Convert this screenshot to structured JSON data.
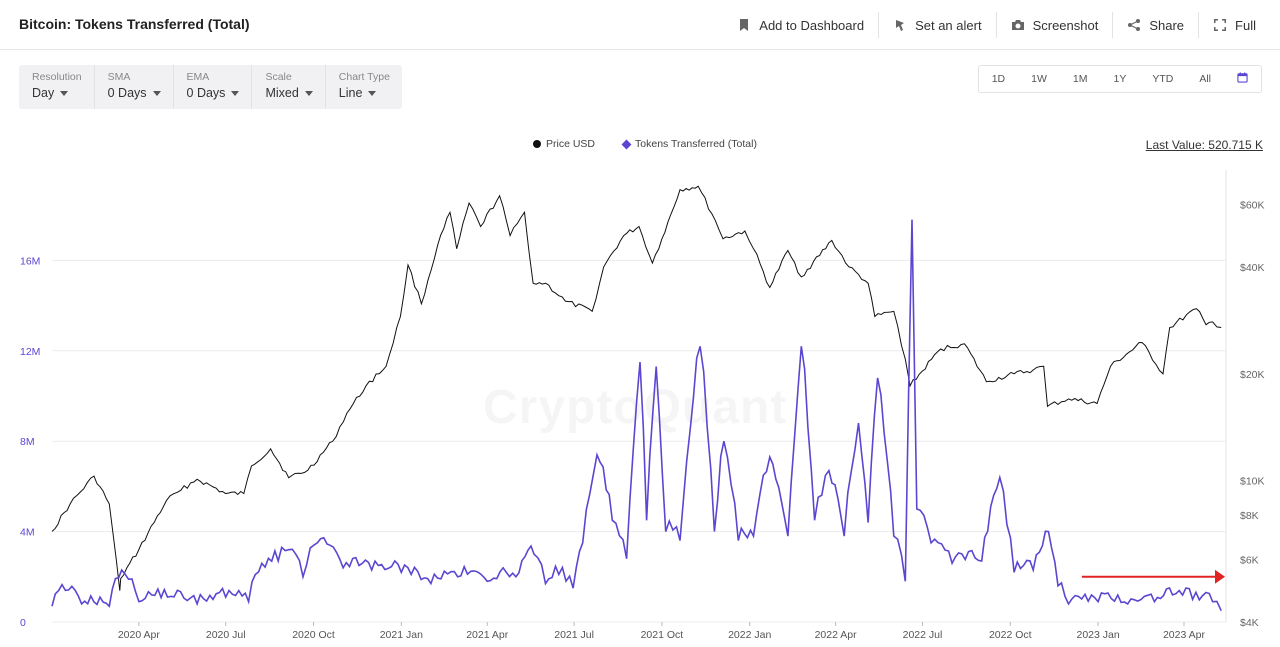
{
  "header": {
    "title": "Bitcoin: Tokens Transferred (Total)",
    "actions": {
      "dashboard": "Add to Dashboard",
      "alert": "Set an alert",
      "screenshot": "Screenshot",
      "share": "Share",
      "full": "Full"
    }
  },
  "controls": {
    "resolution": {
      "label": "Resolution",
      "value": "Day"
    },
    "sma": {
      "label": "SMA",
      "value": "0 Days"
    },
    "ema": {
      "label": "EMA",
      "value": "0 Days"
    },
    "scale": {
      "label": "Scale",
      "value": "Mixed"
    },
    "chart_type": {
      "label": "Chart Type",
      "value": "Line"
    }
  },
  "ranges": [
    "1D",
    "1W",
    "1M",
    "1Y",
    "YTD",
    "All"
  ],
  "last_value": "Last Value: 520.715 K",
  "watermark": "CryptoQuant",
  "colors": {
    "price": "#111111",
    "tokens": "#5a47d1",
    "arrow": "#e02424",
    "left_axis": "#5a47d1"
  },
  "chart_data": {
    "type": "line",
    "legend": [
      "Price USD",
      "Tokens Transferred (Total)"
    ],
    "x_ticks": [
      "2020 Apr",
      "2020 Jul",
      "2020 Oct",
      "2021 Jan",
      "2021 Apr",
      "2021 Jul",
      "2021 Oct",
      "2022 Jan",
      "2022 Apr",
      "2022 Jul",
      "2022 Oct",
      "2023 Jan",
      "2023 Apr"
    ],
    "x_tick_dates": [
      "2020-04-01",
      "2020-07-01",
      "2020-10-01",
      "2021-01-01",
      "2021-04-01",
      "2021-07-01",
      "2021-10-01",
      "2022-01-01",
      "2022-04-01",
      "2022-07-01",
      "2022-10-01",
      "2023-01-01",
      "2023-04-01"
    ],
    "x_range": [
      "2020-01-01",
      "2023-05-15"
    ],
    "y_left": {
      "ticks": [
        "0",
        "4M",
        "8M",
        "12M",
        "16M"
      ],
      "values": [
        0,
        4000000,
        8000000,
        12000000,
        16000000
      ],
      "range": [
        0,
        20000000
      ]
    },
    "y_right": {
      "scale": "log",
      "ticks": [
        "$4K",
        "$6K",
        "$8K",
        "$10K",
        "$20K",
        "$40K",
        "$60K"
      ],
      "values": [
        4000,
        6000,
        8000,
        10000,
        20000,
        40000,
        60000
      ],
      "range": [
        4000,
        75000
      ]
    },
    "grid": true,
    "legend_position": "top-center",
    "series": [
      {
        "name": "Price USD",
        "axis": "right",
        "points": [
          [
            "2020-01-01",
            7200
          ],
          [
            "2020-01-20",
            8600
          ],
          [
            "2020-02-14",
            10300
          ],
          [
            "2020-03-01",
            8600
          ],
          [
            "2020-03-12",
            4900
          ],
          [
            "2020-03-13",
            5300
          ],
          [
            "2020-04-01",
            6400
          ],
          [
            "2020-04-30",
            8800
          ],
          [
            "2020-05-15",
            9400
          ],
          [
            "2020-06-01",
            10100
          ],
          [
            "2020-07-01",
            9200
          ],
          [
            "2020-07-20",
            9200
          ],
          [
            "2020-07-28",
            11000
          ],
          [
            "2020-08-17",
            12300
          ],
          [
            "2020-09-05",
            10200
          ],
          [
            "2020-09-25",
            10700
          ],
          [
            "2020-10-21",
            12900
          ],
          [
            "2020-11-05",
            15500
          ],
          [
            "2020-11-25",
            18500
          ],
          [
            "2020-12-16",
            21000
          ],
          [
            "2020-12-31",
            29000
          ],
          [
            "2021-01-08",
            40500
          ],
          [
            "2021-01-22",
            31500
          ],
          [
            "2021-02-08",
            46000
          ],
          [
            "2021-02-21",
            57000
          ],
          [
            "2021-02-28",
            45000
          ],
          [
            "2021-03-13",
            60500
          ],
          [
            "2021-03-25",
            52000
          ],
          [
            "2021-04-14",
            63500
          ],
          [
            "2021-04-25",
            49000
          ],
          [
            "2021-05-10",
            57000
          ],
          [
            "2021-05-19",
            36000
          ],
          [
            "2021-06-01",
            36000
          ],
          [
            "2021-06-22",
            32000
          ],
          [
            "2021-07-20",
            30000
          ],
          [
            "2021-08-01",
            40000
          ],
          [
            "2021-08-22",
            49000
          ],
          [
            "2021-09-07",
            52000
          ],
          [
            "2021-09-21",
            41000
          ],
          [
            "2021-10-01",
            48000
          ],
          [
            "2021-10-20",
            66000
          ],
          [
            "2021-11-08",
            67500
          ],
          [
            "2021-11-26",
            54000
          ],
          [
            "2021-12-04",
            48000
          ],
          [
            "2021-12-27",
            50500
          ],
          [
            "2022-01-05",
            45000
          ],
          [
            "2022-01-22",
            35000
          ],
          [
            "2022-02-10",
            44500
          ],
          [
            "2022-02-24",
            37500
          ],
          [
            "2022-03-28",
            47500
          ],
          [
            "2022-04-15",
            40000
          ],
          [
            "2022-05-05",
            36000
          ],
          [
            "2022-05-12",
            29000
          ],
          [
            "2022-06-01",
            30000
          ],
          [
            "2022-06-13",
            22000
          ],
          [
            "2022-06-18",
            18500
          ],
          [
            "2022-07-20",
            23500
          ],
          [
            "2022-08-14",
            24300
          ],
          [
            "2022-09-06",
            19000
          ],
          [
            "2022-10-05",
            20000
          ],
          [
            "2022-10-25",
            20500
          ],
          [
            "2022-11-05",
            21000
          ],
          [
            "2022-11-09",
            16200
          ],
          [
            "2022-12-01",
            17000
          ],
          [
            "2022-12-31",
            16500
          ],
          [
            "2023-01-14",
            21000
          ],
          [
            "2023-02-16",
            24500
          ],
          [
            "2023-03-10",
            20000
          ],
          [
            "2023-03-17",
            27000
          ],
          [
            "2023-04-14",
            30500
          ],
          [
            "2023-04-24",
            27500
          ],
          [
            "2023-05-01",
            28000
          ],
          [
            "2023-05-10",
            27000
          ]
        ]
      },
      {
        "name": "Tokens Transferred (Total)",
        "axis": "left",
        "points": [
          [
            "2020-01-01",
            700000
          ],
          [
            "2020-01-15",
            1400000
          ],
          [
            "2020-02-01",
            800000
          ],
          [
            "2020-03-01",
            700000
          ],
          [
            "2020-03-14",
            2300000
          ],
          [
            "2020-04-01",
            900000
          ],
          [
            "2020-05-01",
            1100000
          ],
          [
            "2020-06-01",
            800000
          ],
          [
            "2020-07-01",
            1100000
          ],
          [
            "2020-07-25",
            900000
          ],
          [
            "2020-08-01",
            2100000
          ],
          [
            "2020-08-25",
            2700000
          ],
          [
            "2020-09-05",
            3200000
          ],
          [
            "2020-09-20",
            2000000
          ],
          [
            "2020-10-05",
            3500000
          ],
          [
            "2020-11-01",
            2400000
          ],
          [
            "2020-12-01",
            2300000
          ],
          [
            "2021-01-01",
            2200000
          ],
          [
            "2021-02-01",
            1700000
          ],
          [
            "2021-03-01",
            2000000
          ],
          [
            "2021-04-01",
            1800000
          ],
          [
            "2021-05-01",
            2000000
          ],
          [
            "2021-05-20",
            3000000
          ],
          [
            "2021-06-01",
            1700000
          ],
          [
            "2021-06-15",
            2100000
          ],
          [
            "2021-06-30",
            1500000
          ],
          [
            "2021-07-10",
            3500000
          ],
          [
            "2021-07-25",
            7400000
          ],
          [
            "2021-08-10",
            4500000
          ],
          [
            "2021-08-25",
            2800000
          ],
          [
            "2021-09-08",
            11500000
          ],
          [
            "2021-09-15",
            4500000
          ],
          [
            "2021-09-25",
            11300000
          ],
          [
            "2021-10-05",
            4000000
          ],
          [
            "2021-10-20",
            3600000
          ],
          [
            "2021-11-10",
            12200000
          ],
          [
            "2021-11-25",
            4000000
          ],
          [
            "2021-12-05",
            8000000
          ],
          [
            "2021-12-20",
            3600000
          ],
          [
            "2022-01-05",
            3800000
          ],
          [
            "2022-01-22",
            7300000
          ],
          [
            "2022-02-10",
            3800000
          ],
          [
            "2022-02-24",
            12200000
          ],
          [
            "2022-03-10",
            4500000
          ],
          [
            "2022-03-25",
            6700000
          ],
          [
            "2022-04-10",
            3800000
          ],
          [
            "2022-04-25",
            8800000
          ],
          [
            "2022-05-05",
            4400000
          ],
          [
            "2022-05-15",
            10800000
          ],
          [
            "2022-06-01",
            3800000
          ],
          [
            "2022-06-13",
            1800000
          ],
          [
            "2022-06-20",
            17800000
          ],
          [
            "2022-06-25",
            5000000
          ],
          [
            "2022-07-10",
            3500000
          ],
          [
            "2022-08-01",
            2600000
          ],
          [
            "2022-09-01",
            2700000
          ],
          [
            "2022-09-20",
            6400000
          ],
          [
            "2022-10-05",
            2200000
          ],
          [
            "2022-10-25",
            2300000
          ],
          [
            "2022-11-10",
            4000000
          ],
          [
            "2022-11-20",
            1600000
          ],
          [
            "2022-12-01",
            800000
          ],
          [
            "2023-01-01",
            900000
          ],
          [
            "2023-02-01",
            800000
          ],
          [
            "2023-03-01",
            900000
          ],
          [
            "2023-03-20",
            1200000
          ],
          [
            "2023-04-10",
            1000000
          ],
          [
            "2023-05-01",
            900000
          ],
          [
            "2023-05-10",
            500000
          ]
        ]
      }
    ],
    "annotations": [
      {
        "type": "arrow",
        "color": "#e02424",
        "from": [
          "2022-12-15",
          2000000
        ],
        "to": [
          "2023-05-20",
          2000000
        ]
      }
    ]
  }
}
